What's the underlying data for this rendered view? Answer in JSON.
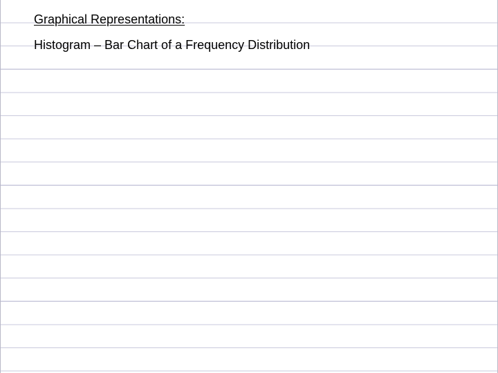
{
  "slide": {
    "heading": "Graphical Representations:",
    "subheading": "Histogram – Bar Chart of a Frequency Distribution"
  },
  "colors": {
    "ruled_line": "#c9c9dc",
    "text": "#000000",
    "background": "#ffffff"
  }
}
